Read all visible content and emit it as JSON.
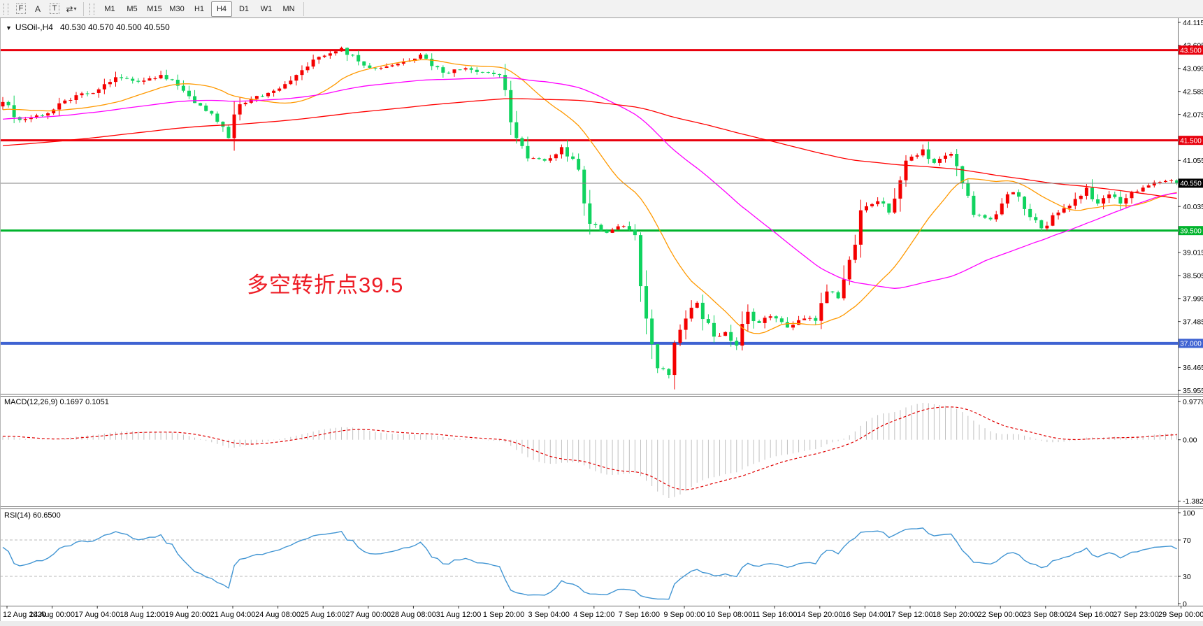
{
  "toolbar": {
    "icons": [
      {
        "name": "font-f-icon",
        "glyph": "F"
      },
      {
        "name": "text-a-icon",
        "glyph": "A"
      },
      {
        "name": "label-t-icon",
        "glyph": "T",
        "framed": true
      },
      {
        "name": "arrows-icon",
        "glyph": "⇄",
        "caret": "▾"
      }
    ],
    "timeframes": [
      "M1",
      "M5",
      "M15",
      "M30",
      "H1",
      "H4",
      "D1",
      "W1",
      "MN"
    ],
    "active_timeframe": "H4"
  },
  "chart_title": {
    "collapse_icon": "▼",
    "symbol_period": "USOil-,H4",
    "quotes": "40.530 40.570 40.500 40.550"
  },
  "annotation": {
    "text": "多空转折点39.5",
    "color": "#ee1c25"
  },
  "indicators": {
    "macd": {
      "label": "MACD(12,26,9) 0.1697 0.1051",
      "ticks": [
        {
          "v": 0.9779,
          "label": "0.9779"
        },
        {
          "v": 0,
          "label": "0.00"
        },
        {
          "v": -1.382,
          "label": "-1.382"
        }
      ]
    },
    "rsi": {
      "label": "RSI(14) 60.6500",
      "ticks": [
        {
          "v": 100,
          "label": "100"
        },
        {
          "v": 70,
          "label": "70"
        },
        {
          "v": 30,
          "label": "30"
        },
        {
          "v": 0,
          "label": "0"
        }
      ],
      "dashed_levels": [
        70,
        30
      ]
    }
  },
  "chart_data": {
    "type": "candlestick",
    "symbol": "USOil-",
    "timeframe": "H4",
    "current_quote": {
      "open": 40.53,
      "high": 40.57,
      "low": 40.5,
      "close": 40.55
    },
    "bars": 209,
    "close_path": [
      [
        0,
        42.35
      ],
      [
        3,
        41.95
      ],
      [
        8,
        42.1
      ],
      [
        13,
        42.5
      ],
      [
        16,
        42.55
      ],
      [
        20,
        42.9
      ],
      [
        24,
        42.8
      ],
      [
        28,
        42.95
      ],
      [
        32,
        42.6
      ],
      [
        36,
        42.15
      ],
      [
        39,
        41.8
      ],
      [
        40,
        41.55
      ],
      [
        42,
        42.3
      ],
      [
        48,
        42.6
      ],
      [
        52,
        42.95
      ],
      [
        56,
        43.35
      ],
      [
        60,
        43.55
      ],
      [
        63,
        43.25
      ],
      [
        66,
        43.1
      ],
      [
        70,
        43.2
      ],
      [
        74,
        43.4
      ],
      [
        78,
        43.0
      ],
      [
        82,
        43.1
      ],
      [
        88,
        42.95
      ],
      [
        90,
        41.9
      ],
      [
        93,
        41.1
      ],
      [
        96,
        41.05
      ],
      [
        99,
        41.35
      ],
      [
        102,
        40.85
      ],
      [
        104,
        39.65
      ],
      [
        107,
        39.45
      ],
      [
        110,
        39.6
      ],
      [
        112,
        39.4
      ],
      [
        114,
        37.55
      ],
      [
        116,
        36.45
      ],
      [
        118,
        36.3
      ],
      [
        120,
        37.3
      ],
      [
        123,
        37.9
      ],
      [
        126,
        37.15
      ],
      [
        128,
        37.25
      ],
      [
        130,
        36.95
      ],
      [
        132,
        37.7
      ],
      [
        134,
        37.45
      ],
      [
        136,
        37.6
      ],
      [
        139,
        37.35
      ],
      [
        142,
        37.55
      ],
      [
        144,
        37.5
      ],
      [
        146,
        38.15
      ],
      [
        148,
        38.0
      ],
      [
        150,
        38.85
      ],
      [
        152,
        39.95
      ],
      [
        155,
        40.15
      ],
      [
        157,
        39.9
      ],
      [
        160,
        41.05
      ],
      [
        163,
        41.3
      ],
      [
        165,
        41.0
      ],
      [
        168,
        41.2
      ],
      [
        170,
        40.55
      ],
      [
        172,
        39.85
      ],
      [
        175,
        39.75
      ],
      [
        177,
        40.1
      ],
      [
        179,
        40.35
      ],
      [
        182,
        39.8
      ],
      [
        184,
        39.55
      ],
      [
        187,
        39.9
      ],
      [
        190,
        40.2
      ],
      [
        192,
        40.45
      ],
      [
        194,
        40.1
      ],
      [
        196,
        40.3
      ],
      [
        198,
        40.1
      ],
      [
        200,
        40.35
      ],
      [
        203,
        40.5
      ],
      [
        206,
        40.6
      ],
      [
        208,
        40.55
      ]
    ],
    "prehistory": {
      "start": 40.3,
      "end": 42.3,
      "bars": 160
    },
    "hlines": [
      {
        "price": 43.5,
        "label": "43.500",
        "color": "#e8000d",
        "width": 3
      },
      {
        "price": 41.5,
        "label": "41.500",
        "color": "#e8000d",
        "width": 3
      },
      {
        "price": 39.5,
        "label": "39.500",
        "color": "#00b32c",
        "width": 3
      },
      {
        "price": 37.0,
        "label": "37.000",
        "color": "#3f63d2",
        "width": 4
      }
    ],
    "current_price": {
      "value": 40.55,
      "label": "40.550",
      "line_color": "#808080",
      "badge_bg": "#000000"
    },
    "moving_averages": [
      {
        "period": 20,
        "color": "#ff9900"
      },
      {
        "period": 56,
        "color": "#ff00ff"
      },
      {
        "period": 150,
        "color": "#ff0000"
      }
    ],
    "price_axis_ticks": [
      {
        "v": 44.115,
        "label": "44.115"
      },
      {
        "v": 43.605,
        "label": "43.605"
      },
      {
        "v": 43.095,
        "label": "43.095"
      },
      {
        "v": 42.585,
        "label": "42.585"
      },
      {
        "v": 42.075,
        "label": "42.075"
      },
      {
        "v": 41.055,
        "label": "41.055"
      },
      {
        "v": 40.035,
        "label": "40.035"
      },
      {
        "v": 39.015,
        "label": "39.015"
      },
      {
        "v": 38.505,
        "label": "38.505"
      },
      {
        "v": 37.995,
        "label": "37.995"
      },
      {
        "v": 37.485,
        "label": "37.485"
      },
      {
        "v": 36.465,
        "label": "36.465"
      },
      {
        "v": 35.955,
        "label": "35.955"
      }
    ],
    "time_axis_labels": [
      "12 Aug 2020",
      "14 Aug 00:00",
      "17 Aug 04:00",
      "18 Aug 12:00",
      "19 Aug 20:00",
      "21 Aug 04:00",
      "24 Aug 08:00",
      "25 Aug 16:00",
      "27 Aug 00:00",
      "28 Aug 08:00",
      "31 Aug 12:00",
      "1 Sep 20:00",
      "3 Sep 04:00",
      "4 Sep 12:00",
      "7 Sep 16:00",
      "9 Sep 00:00",
      "10 Sep 08:00",
      "11 Sep 16:00",
      "14 Sep 20:00",
      "16 Sep 04:00",
      "17 Sep 12:00",
      "18 Sep 20:00",
      "22 Sep 00:00",
      "23 Sep 08:00",
      "24 Sep 16:00",
      "27 Sep 23:00",
      "29 Sep 00:00"
    ],
    "colors": {
      "up": "#f40000",
      "down": "#10d35f",
      "macd_histogram": "#c0c0c0",
      "macd_signal": "#e00000",
      "rsi_line": "#4195d3",
      "level_dashed": "#b9b9b9",
      "axis_text": "#000000",
      "panel_border": "#6e6e6e"
    },
    "macd_values": {
      "main": 0.1697,
      "signal": 0.1051
    },
    "rsi_value": 60.65
  }
}
